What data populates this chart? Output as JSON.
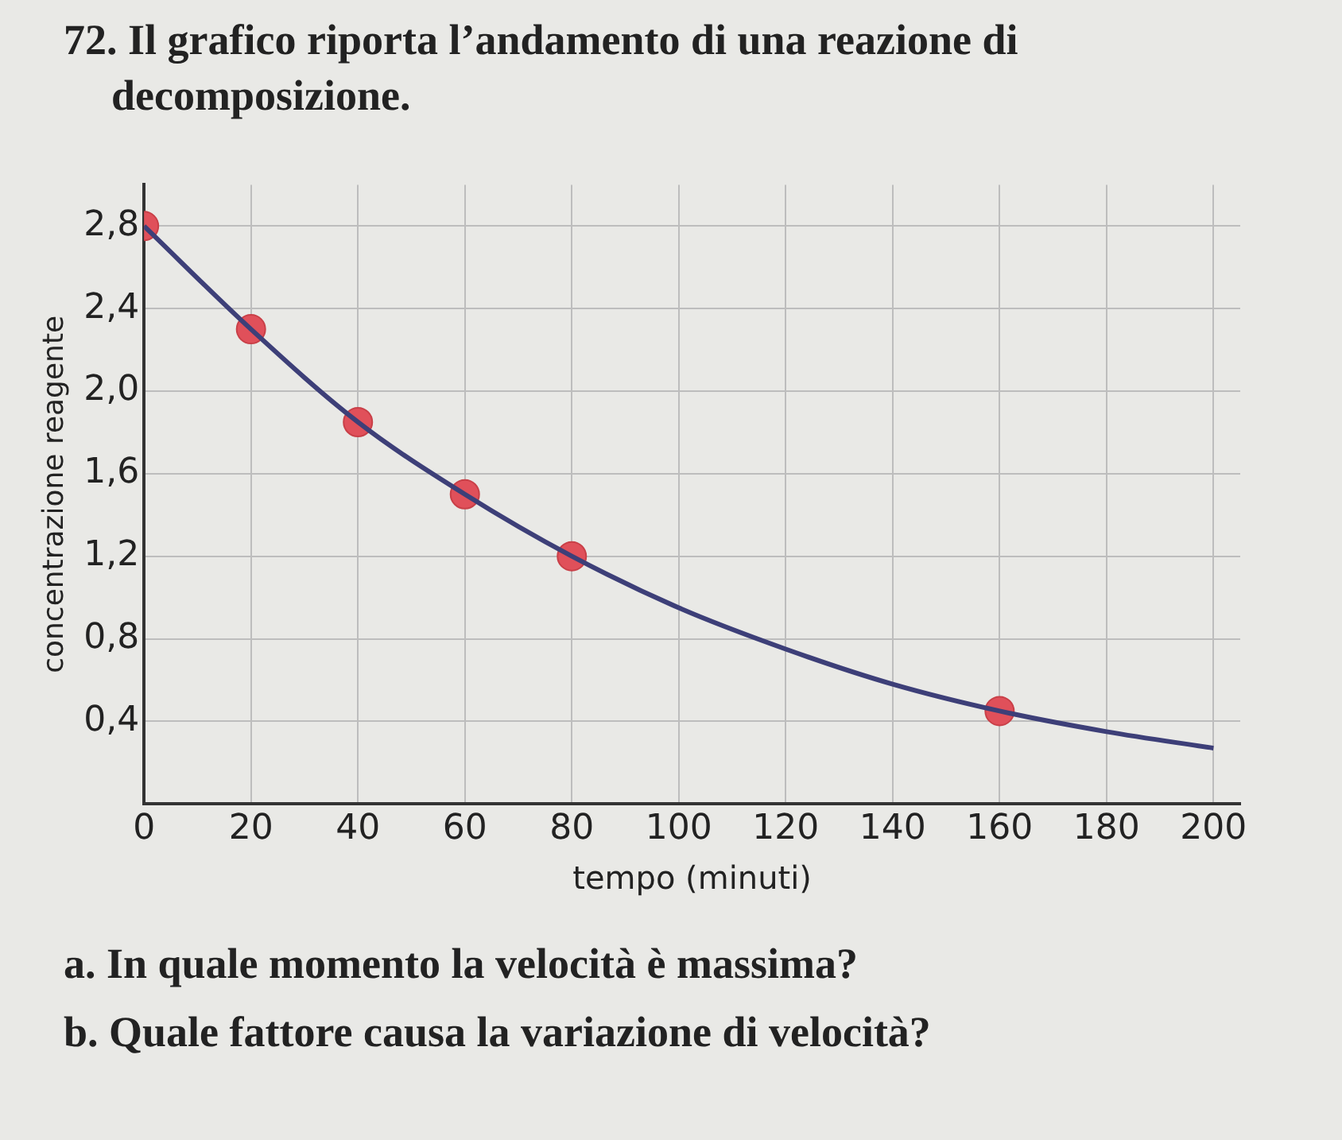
{
  "chart_data": {
    "type": "line",
    "title": "72. Il grafico riporta l’andamento di una reazione di decomposizione.",
    "xlabel": "tempo (minuti)",
    "ylabel": "concentrazione reagente",
    "series": [
      {
        "type": "line",
        "marker": "none",
        "color": "#3d3f78",
        "x": [
          0,
          20,
          40,
          60,
          80,
          100,
          120,
          140,
          160,
          180,
          200
        ],
        "values": [
          2.8,
          2.3,
          1.85,
          1.5,
          1.2,
          0.95,
          0.75,
          0.58,
          0.45,
          0.35,
          0.27
        ]
      },
      {
        "type": "scatter",
        "marker": "circle",
        "color": "#e0505a",
        "x": [
          0,
          20,
          40,
          60,
          80,
          160
        ],
        "values": [
          2.8,
          2.3,
          1.85,
          1.5,
          1.2,
          0.45
        ]
      }
    ],
    "xlim": [
      0,
      205
    ],
    "xticks": [
      0,
      20,
      40,
      60,
      80,
      100,
      120,
      140,
      160,
      180,
      200
    ],
    "ylim": [
      0,
      3
    ],
    "yticks": [
      {
        "value": 0.4,
        "label": "0,4"
      },
      {
        "value": 0.8,
        "label": "0,8"
      },
      {
        "value": 1.2,
        "label": "1,2"
      },
      {
        "value": 1.6,
        "label": "1,6"
      },
      {
        "value": 2.0,
        "label": "2,0"
      },
      {
        "value": 2.4,
        "label": "2,4"
      },
      {
        "value": 2.8,
        "label": "2,8"
      }
    ],
    "grid": true,
    "legend": false,
    "annotations": [
      "a. In quale momento la velocità è massima?",
      "b. Quale fattore causa la variazione di velocità?"
    ]
  }
}
